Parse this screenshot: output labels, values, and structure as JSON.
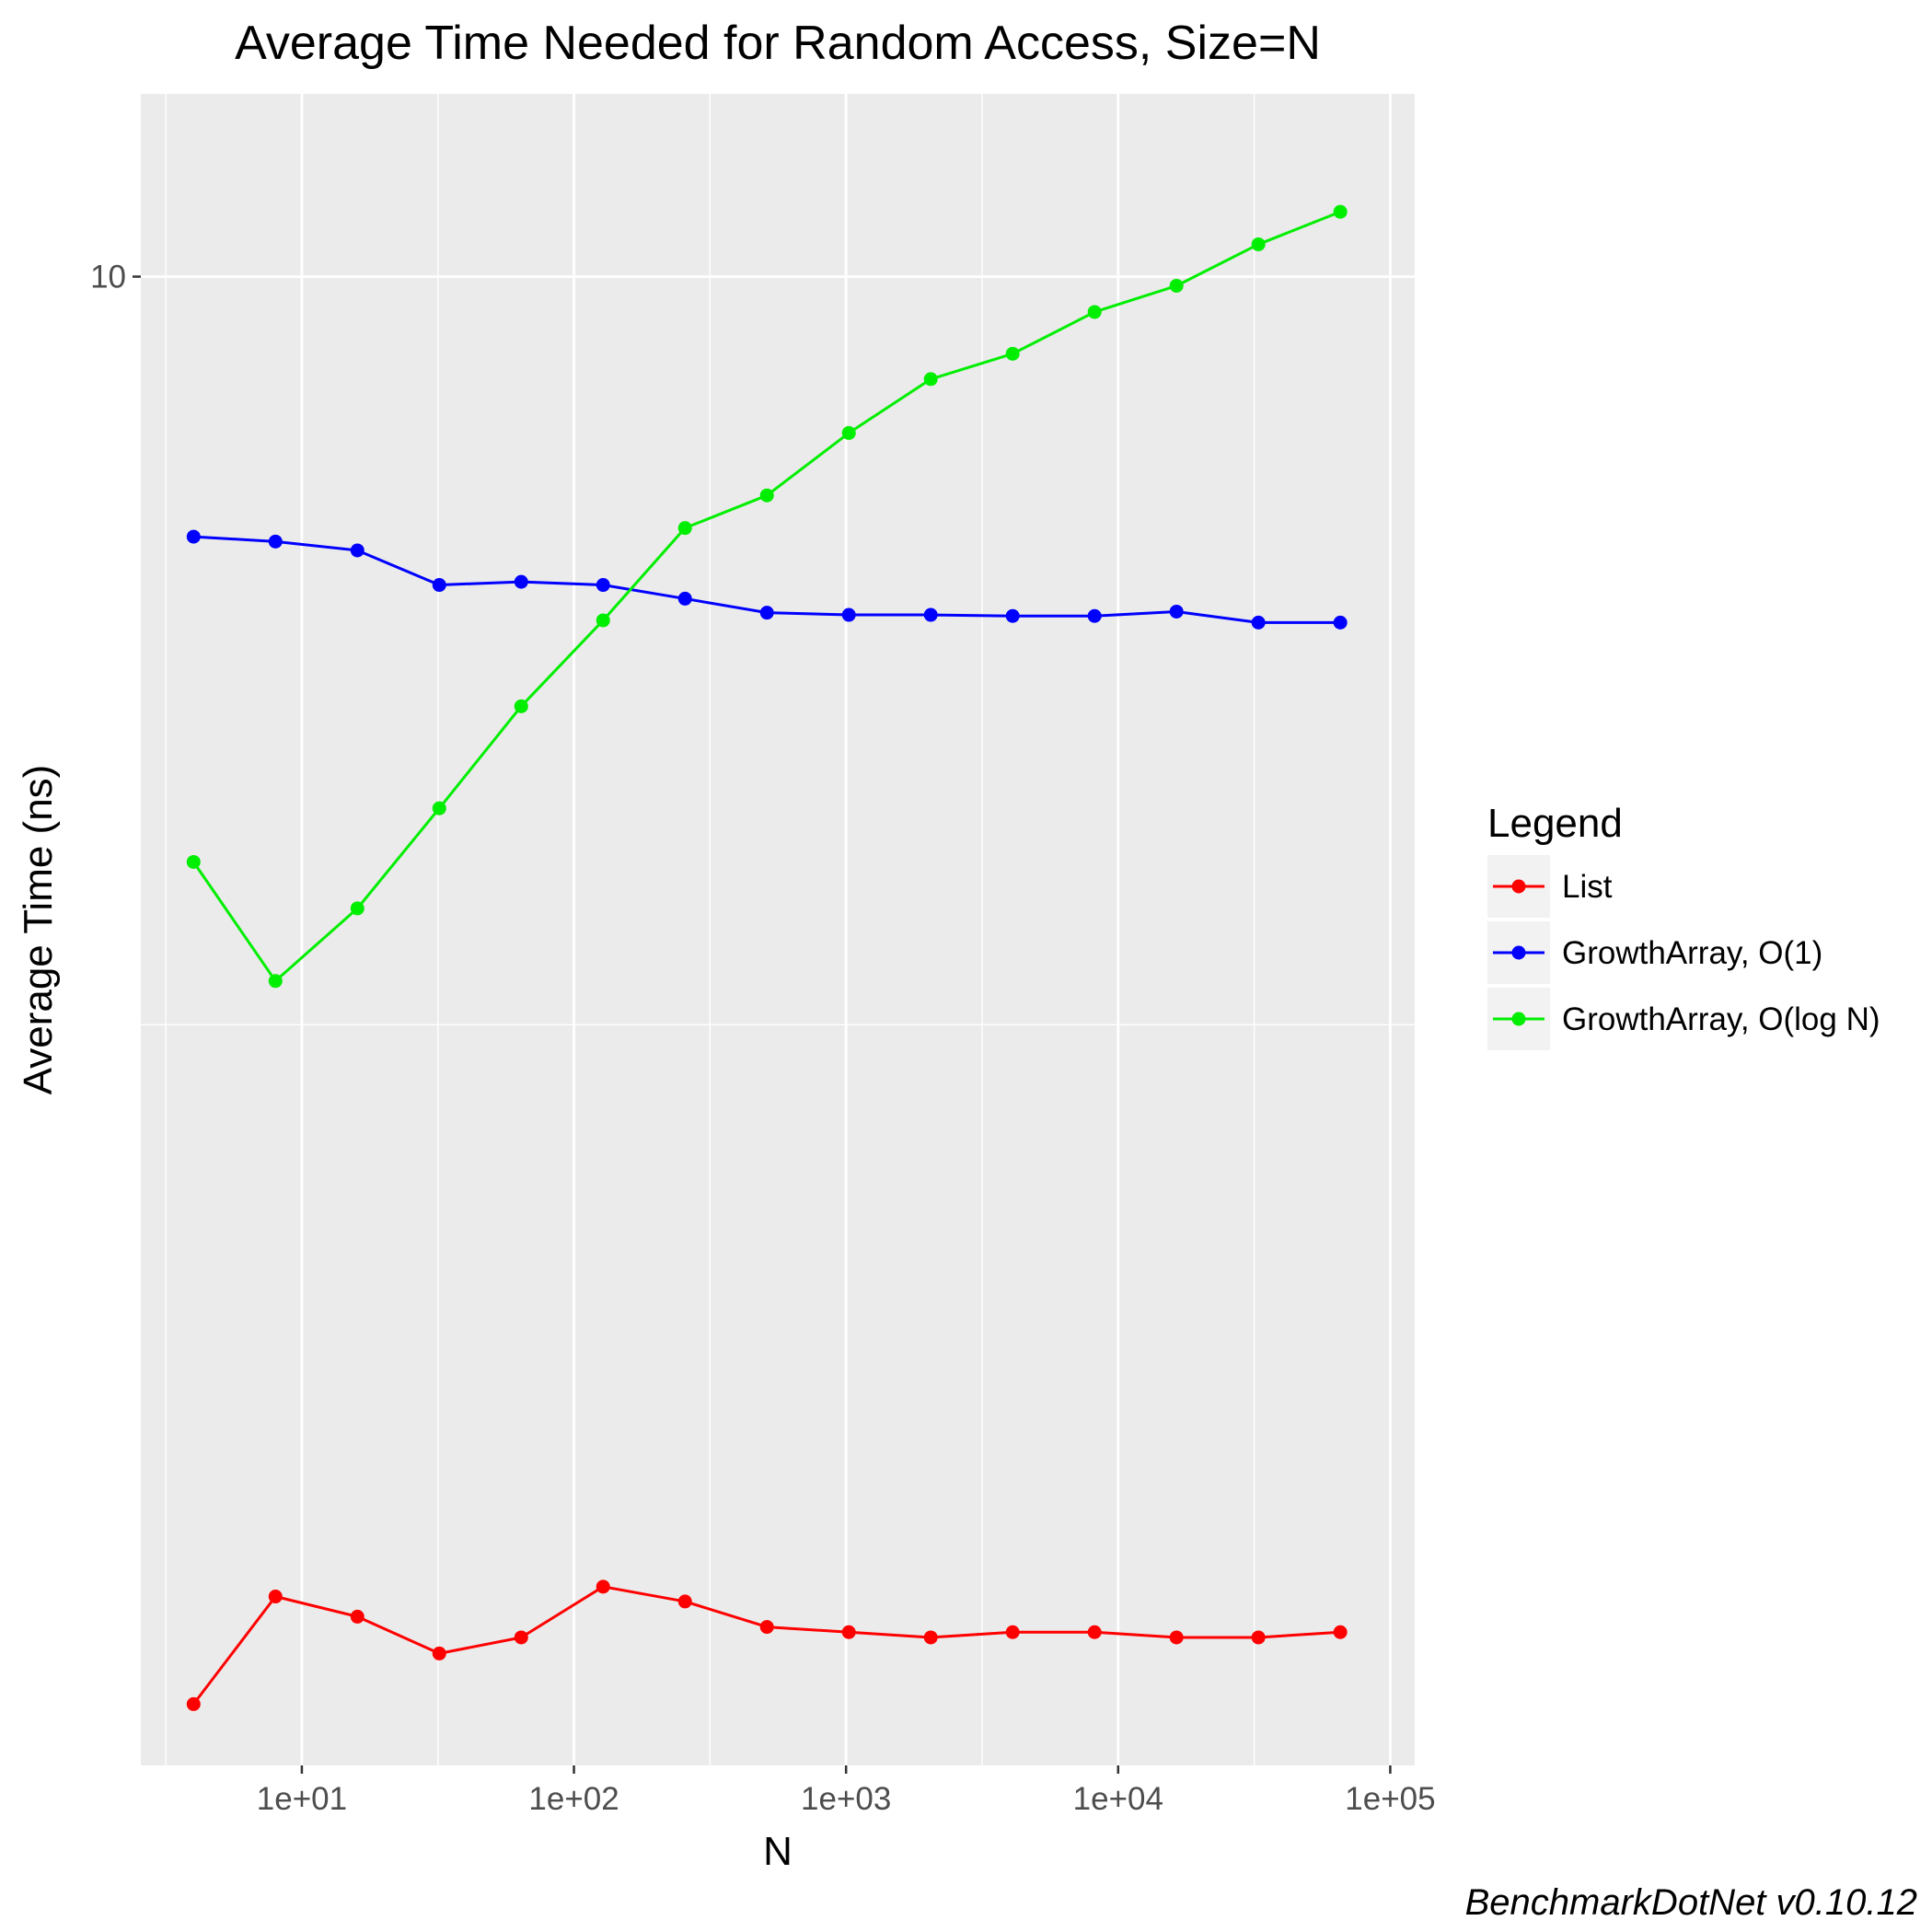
{
  "chart_data": {
    "type": "line",
    "title": "Average Time Needed for Random Access, Size=N",
    "xlabel": "N",
    "ylabel": "Average Time (ns)",
    "x_scale": "log10",
    "y_scale": "log10",
    "xlim": [
      2.56,
      123000
    ],
    "ylim": [
      1.01,
      13.25
    ],
    "x_ticks": [
      {
        "value": 10,
        "label": "1e+01"
      },
      {
        "value": 100,
        "label": "1e+02"
      },
      {
        "value": 1000,
        "label": "1e+03"
      },
      {
        "value": 10000,
        "label": "1e+04"
      },
      {
        "value": 100000,
        "label": "1e+05"
      }
    ],
    "y_ticks": [
      {
        "value": 10,
        "label": "10"
      }
    ],
    "grid": true,
    "x": [
      4,
      8,
      16,
      32,
      64,
      128,
      256,
      512,
      1024,
      2048,
      4096,
      8192,
      16384,
      32768,
      65536
    ],
    "series": [
      {
        "name": "List",
        "color": "#ff0000",
        "values": [
          1.11,
          1.31,
          1.27,
          1.2,
          1.23,
          1.33,
          1.3,
          1.25,
          1.24,
          1.23,
          1.24,
          1.24,
          1.23,
          1.23,
          1.24
        ]
      },
      {
        "name": "GrowthArray, O(1)",
        "color": "#0000ff",
        "values": [
          6.7,
          6.65,
          6.56,
          6.22,
          6.25,
          6.22,
          6.09,
          5.96,
          5.94,
          5.94,
          5.93,
          5.93,
          5.97,
          5.87,
          5.87
        ]
      },
      {
        "name": "GrowthArray, O(log N)",
        "color": "#00ee00",
        "values": [
          4.06,
          3.38,
          3.78,
          4.41,
          5.16,
          5.89,
          6.79,
          7.14,
          7.86,
          8.54,
          8.88,
          9.47,
          9.86,
          10.51,
          11.05
        ]
      }
    ],
    "legend": {
      "title": "Legend",
      "position": "right"
    }
  },
  "caption": "BenchmarkDotNet v0.10.12"
}
